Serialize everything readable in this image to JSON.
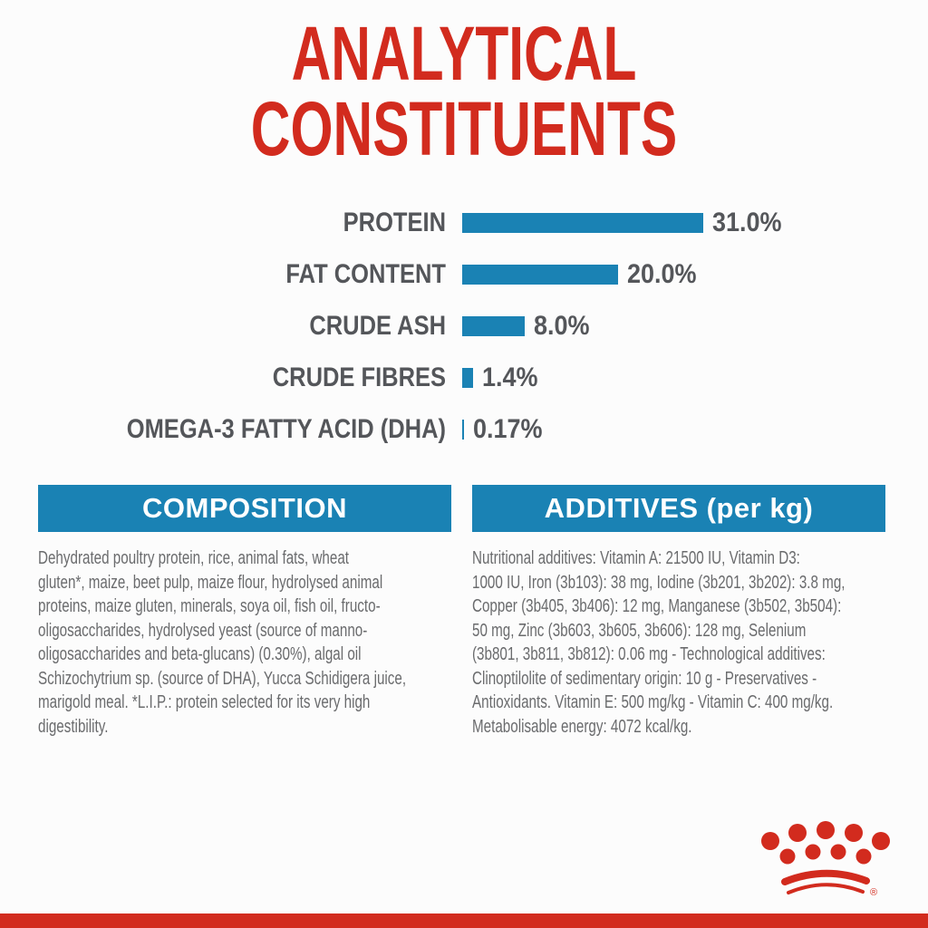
{
  "page": {
    "background": "#fcfcfc",
    "brand_red": "#d22b1e",
    "brand_blue": "#1a82b4",
    "label_gray": "#54565a",
    "body_gray": "#6a6b6d"
  },
  "title": {
    "line1": "ANALYTICAL",
    "line2": "CONSTITUENTS"
  },
  "chart_data": {
    "type": "bar",
    "orientation": "horizontal",
    "title": "ANALYTICAL CONSTITUENTS",
    "categories": [
      "PROTEIN",
      "FAT CONTENT",
      "CRUDE ASH",
      "CRUDE FIBRES",
      "OMEGA-3 FATTY ACID (DHA)"
    ],
    "values": [
      31.0,
      20.0,
      8.0,
      1.4,
      0.17
    ],
    "value_labels": [
      "31.0%",
      "20.0%",
      "8.0%",
      "1.4%",
      "0.17%"
    ],
    "unit": "percent",
    "xlim": [
      0,
      31
    ],
    "bar_color": "#1a82b4",
    "grid": false,
    "legend": false
  },
  "sections": {
    "composition": {
      "header": "COMPOSITION",
      "body": "Dehydrated poultry protein, rice, animal fats, wheat\ngluten*, maize, beet pulp, maize flour, hydrolysed animal\nproteins, maize gluten, minerals, soya oil, fish oil, fructo-\noligosaccharides, hydrolysed yeast (source of manno-\noligosaccharides and beta-glucans) (0.30%), algal oil\nSchizochytrium sp. (source of DHA), Yucca Schidigera juice,\nmarigold meal. *L.I.P.: protein selected for its very high\ndigestibility."
    },
    "additives": {
      "header": "ADDITIVES (per kg)",
      "body": "Nutritional additives: Vitamin A: 21500 IU, Vitamin D3:\n1000 IU, Iron (3b103): 38 mg, Iodine (3b201, 3b202): 3.8 mg,\nCopper (3b405, 3b406): 12 mg, Manganese (3b502, 3b504):\n50 mg, Zinc (3b603, 3b605, 3b606): 128 mg, Selenium\n(3b801, 3b811, 3b812): 0.06 mg - Technological additives:\nClinoptilolite of sedimentary origin: 10 g - Preservatives -\nAntioxidants. Vitamin E: 500 mg/kg - Vitamin C: 400 mg/kg.\nMetabolisable energy: 4072 kcal/kg."
    }
  },
  "footer": {
    "logo_icon": "royal-canin-crown-icon",
    "registered_mark": "®"
  }
}
